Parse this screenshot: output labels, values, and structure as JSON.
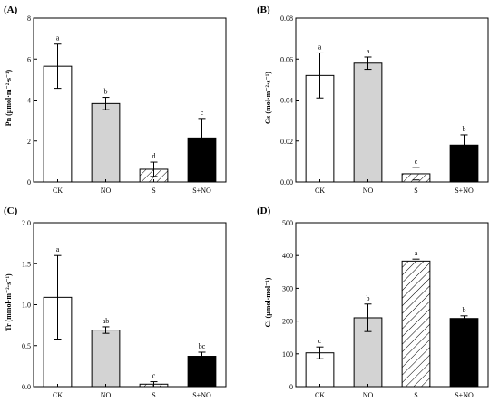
{
  "chart_data": [
    {
      "type": "bar",
      "panel_label": "(A)",
      "ylabel": "Pn (μmol·m⁻²·s⁻¹)",
      "categories": [
        "CK",
        "NO",
        "S",
        "S+NO"
      ],
      "values": [
        5.65,
        3.83,
        0.62,
        2.15
      ],
      "errors": [
        1.08,
        0.3,
        0.35,
        0.95
      ],
      "letters": [
        "a",
        "b",
        "d",
        "c"
      ],
      "ylim": [
        0,
        8
      ],
      "yticks": [
        "0",
        "2",
        "4",
        "6",
        "8"
      ],
      "fills": [
        "white",
        "gray",
        "hatch",
        "black"
      ]
    },
    {
      "type": "bar",
      "panel_label": "(B)",
      "ylabel": "Gs (mol·m⁻²·s⁻¹)",
      "categories": [
        "CK",
        "NO",
        "S",
        "S+NO"
      ],
      "values": [
        0.052,
        0.058,
        0.004,
        0.018
      ],
      "errors": [
        0.011,
        0.003,
        0.003,
        0.005
      ],
      "letters": [
        "a",
        "a",
        "c",
        "b"
      ],
      "ylim": [
        0,
        0.08
      ],
      "yticks": [
        "0.00",
        "0.02",
        "0.04",
        "0.06",
        "0.08"
      ],
      "fills": [
        "white",
        "gray",
        "hatch",
        "black"
      ]
    },
    {
      "type": "bar",
      "panel_label": "(C)",
      "ylabel": "Tr (mmol·m⁻²·s⁻¹)",
      "categories": [
        "CK",
        "NO",
        "S",
        "S+NO"
      ],
      "values": [
        1.09,
        0.69,
        0.03,
        0.37
      ],
      "errors": [
        0.51,
        0.04,
        0.03,
        0.05
      ],
      "letters": [
        "a",
        "ab",
        "c",
        "bc"
      ],
      "ylim": [
        0,
        2.0
      ],
      "yticks": [
        "0.0",
        "0.5",
        "1.0",
        "1.5",
        "2.0"
      ],
      "fills": [
        "white",
        "gray",
        "hatch",
        "black"
      ]
    },
    {
      "type": "bar",
      "panel_label": "(D)",
      "ylabel": "Ci (μmol·mol⁻¹)",
      "categories": [
        "CK",
        "NO",
        "S",
        "S+NO"
      ],
      "values": [
        103,
        210,
        383,
        208
      ],
      "errors": [
        18,
        42,
        6,
        8
      ],
      "letters": [
        "c",
        "b",
        "a",
        "b"
      ],
      "ylim": [
        0,
        500
      ],
      "yticks": [
        "0",
        "100",
        "200",
        "300",
        "400",
        "500"
      ],
      "fills": [
        "white",
        "gray",
        "hatch",
        "black"
      ]
    }
  ]
}
